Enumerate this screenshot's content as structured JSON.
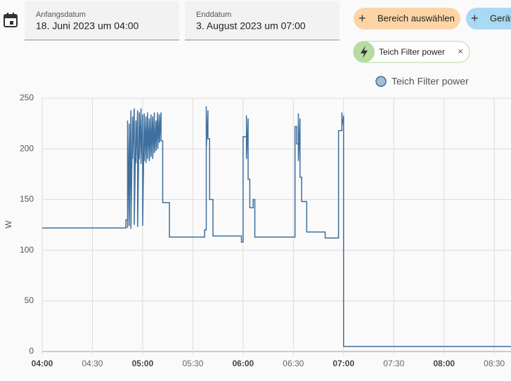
{
  "header": {
    "start_label": "Anfangsdatum",
    "start_value": "18. Juni 2023 um 04:00",
    "end_label": "Enddatum",
    "end_value": "3. August 2023 um 07:00",
    "buttons": [
      "Bereich auswählen",
      "Gerät"
    ],
    "chip": "Teich Filter power"
  },
  "chart_data": {
    "type": "line",
    "y_label": "W",
    "grid": true,
    "xlim": [
      "04:00",
      "08:40"
    ],
    "xticks": [
      "04:00",
      "04:30",
      "05:00",
      "05:30",
      "06:00",
      "06:30",
      "07:00",
      "07:30",
      "08:00",
      "08:30"
    ],
    "ylim": [
      0,
      250
    ],
    "yticks": [
      0,
      50,
      100,
      150,
      200,
      250
    ],
    "x": [
      "04:00",
      "04:50",
      "04:50",
      "04:51",
      "04:51",
      "04:51",
      "04:52",
      "04:52",
      "04:53",
      "04:53",
      "04:54",
      "04:54",
      "04:55",
      "04:55",
      "04:56",
      "04:56",
      "04:57",
      "04:57",
      "04:58",
      "04:58",
      "04:59",
      "04:59",
      "05:00",
      "05:00",
      "05:01",
      "05:01",
      "05:02",
      "05:02",
      "05:03",
      "05:03",
      "05:04",
      "05:04",
      "05:05",
      "05:05",
      "05:06",
      "05:06",
      "05:07",
      "05:07",
      "05:08",
      "05:08",
      "05:09",
      "05:09",
      "05:10",
      "05:10",
      "05:11",
      "05:11",
      "05:12",
      "05:12",
      "05:16",
      "05:16",
      "05:37",
      "05:37",
      "05:38",
      "05:38",
      "05:38",
      "05:39",
      "05:39",
      "05:40",
      "05:40",
      "05:42",
      "05:42",
      "05:59",
      "05:59",
      "06:00",
      "06:00",
      "06:02",
      "06:02",
      "06:02",
      "06:03",
      "06:03",
      "06:04",
      "06:04",
      "06:06",
      "06:06",
      "06:07",
      "06:07",
      "06:31",
      "06:31",
      "06:32",
      "06:32",
      "06:33",
      "06:33",
      "06:33",
      "06:34",
      "06:34",
      "06:35",
      "06:35",
      "06:38",
      "06:38",
      "06:49",
      "06:49",
      "06:57",
      "06:57",
      "06:59",
      "06:59",
      "06:59",
      "07:00",
      "07:00",
      "08:40"
    ],
    "series": [
      {
        "name": "Teich Filter power",
        "color": "#3e6f9e",
        "values": [
          122,
          122,
          130,
          130,
          228,
          122,
          225,
          124,
          238,
          121,
          232,
          190,
          240,
          125,
          228,
          186,
          238,
          123,
          236,
          190,
          240,
          185,
          234,
          124,
          235,
          188,
          232,
          186,
          236,
          190,
          230,
          188,
          234,
          192,
          232,
          190,
          236,
          196,
          228,
          198,
          236,
          200,
          234,
          206,
          236,
          208,
          208,
          147,
          147,
          113,
          113,
          120,
          120,
          242,
          200,
          238,
          210,
          210,
          150,
          150,
          114,
          114,
          108,
          108,
          212,
          212,
          233,
          190,
          230,
          170,
          170,
          142,
          142,
          150,
          150,
          113,
          113,
          222,
          222,
          205,
          205,
          235,
          188,
          230,
          172,
          172,
          148,
          148,
          118,
          118,
          112,
          112,
          218,
          218,
          236,
          222,
          233,
          5,
          5
        ]
      }
    ]
  }
}
